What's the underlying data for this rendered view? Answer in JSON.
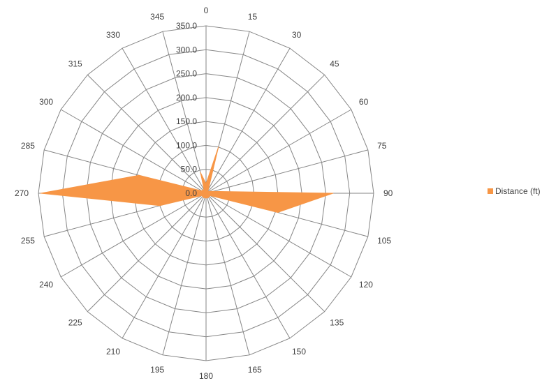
{
  "chart_data": {
    "type": "radar",
    "title": "",
    "angles": [
      "0",
      "15",
      "30",
      "45",
      "60",
      "75",
      "90",
      "105",
      "120",
      "135",
      "150",
      "165",
      "180",
      "195",
      "210",
      "225",
      "240",
      "255",
      "270",
      "285",
      "300",
      "315",
      "330",
      "345"
    ],
    "radial_ticks": [
      "0.0",
      "50.0",
      "100.0",
      "150.0",
      "200.0",
      "250.0",
      "300.0",
      "350.0"
    ],
    "rlim": [
      0,
      350
    ],
    "grid": true,
    "legend_position": "right",
    "series": [
      {
        "name": "Distance (ft)",
        "color": "#F79646",
        "values": [
          20,
          100,
          10,
          5,
          8,
          15,
          265,
          155,
          10,
          10,
          10,
          10,
          10,
          10,
          10,
          10,
          10,
          100,
          345,
          145,
          10,
          10,
          8,
          45
        ]
      }
    ]
  }
}
